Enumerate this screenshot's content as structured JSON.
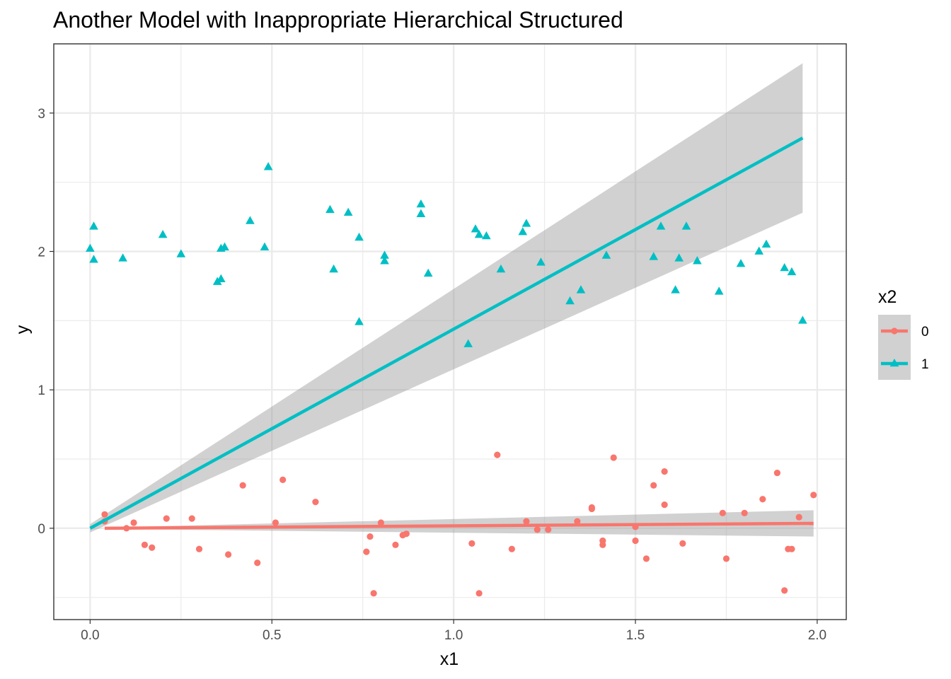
{
  "chart_data": {
    "type": "scatter",
    "title": "Another Model with Inappropriate Hierarchical Structured",
    "xlabel": "x1",
    "ylabel": "y",
    "xlim": [
      -0.1,
      2.08
    ],
    "ylim": [
      -0.66,
      3.5
    ],
    "x_ticks": [
      0.0,
      0.5,
      1.0,
      1.5,
      2.0
    ],
    "x_tick_labels": [
      "0.0",
      "0.5",
      "1.0",
      "1.5",
      "2.0"
    ],
    "y_ticks": [
      0,
      1,
      2,
      3
    ],
    "y_tick_labels": [
      "0",
      "1",
      "2",
      "3"
    ],
    "grid": true,
    "legend": {
      "title": "x2",
      "position": "right"
    },
    "colors": {
      "0": "#F8766D",
      "1": "#00BFC4",
      "ribbon": "#999999",
      "panel_border": "#333333",
      "grid": "#ebebeb"
    },
    "series": [
      {
        "name": "0",
        "marker": "circle",
        "x": [
          0.04,
          0.04,
          0.1,
          0.12,
          0.15,
          0.17,
          0.21,
          0.28,
          0.3,
          0.38,
          0.42,
          0.46,
          0.51,
          0.53,
          0.62,
          0.76,
          0.77,
          0.78,
          0.8,
          0.84,
          0.86,
          0.87,
          1.05,
          1.07,
          1.12,
          1.16,
          1.2,
          1.23,
          1.26,
          1.34,
          1.38,
          1.38,
          1.41,
          1.41,
          1.44,
          1.5,
          1.5,
          1.53,
          1.55,
          1.58,
          1.58,
          1.63,
          1.74,
          1.75,
          1.8,
          1.85,
          1.89,
          1.91,
          1.92,
          1.93,
          1.95,
          1.99
        ],
        "y": [
          0.1,
          0.05,
          0.0,
          0.04,
          -0.12,
          -0.14,
          0.07,
          0.07,
          -0.15,
          -0.19,
          0.31,
          -0.25,
          0.04,
          0.35,
          0.19,
          -0.17,
          -0.06,
          -0.47,
          0.04,
          -0.12,
          -0.05,
          -0.04,
          -0.11,
          -0.47,
          0.53,
          -0.15,
          0.05,
          -0.01,
          -0.01,
          0.05,
          0.15,
          0.14,
          -0.09,
          -0.12,
          0.51,
          0.01,
          -0.09,
          -0.22,
          0.31,
          0.41,
          0.17,
          -0.11,
          0.11,
          -0.22,
          0.11,
          0.21,
          0.4,
          -0.45,
          -0.15,
          -0.15,
          0.08,
          0.24
        ],
        "fit": {
          "x": [
            0.04,
            1.99
          ],
          "y": [
            0.0,
            0.035
          ]
        },
        "band": {
          "x": [
            0.04,
            1.99
          ],
          "lower": [
            -0.005,
            -0.06
          ],
          "upper": [
            0.005,
            0.13
          ]
        }
      },
      {
        "name": "1",
        "marker": "triangle",
        "x": [
          0.0,
          0.01,
          0.01,
          0.09,
          0.2,
          0.25,
          0.35,
          0.36,
          0.36,
          0.37,
          0.44,
          0.48,
          0.49,
          0.66,
          0.67,
          0.71,
          0.74,
          0.74,
          0.81,
          0.81,
          0.91,
          0.91,
          0.93,
          1.04,
          1.06,
          1.07,
          1.09,
          1.13,
          1.19,
          1.2,
          1.24,
          1.32,
          1.35,
          1.42,
          1.55,
          1.57,
          1.61,
          1.62,
          1.64,
          1.67,
          1.73,
          1.79,
          1.84,
          1.86,
          1.91,
          1.93,
          1.96
        ],
        "y": [
          2.02,
          2.18,
          1.94,
          1.95,
          2.12,
          1.98,
          1.78,
          1.8,
          2.02,
          2.03,
          2.22,
          2.03,
          2.61,
          2.3,
          1.87,
          2.28,
          2.1,
          1.49,
          1.97,
          1.93,
          2.34,
          2.27,
          1.84,
          1.33,
          2.16,
          2.12,
          2.11,
          1.87,
          2.14,
          2.2,
          1.92,
          1.64,
          1.72,
          1.97,
          1.96,
          2.18,
          1.72,
          1.95,
          2.18,
          1.93,
          1.71,
          1.91,
          2.0,
          2.05,
          1.88,
          1.85,
          1.5
        ],
        "fit": {
          "x": [
            0.0,
            1.96
          ],
          "y": [
            0.0,
            2.82
          ]
        },
        "band": {
          "x": [
            0.0,
            1.96
          ],
          "lower": [
            -0.03,
            2.28
          ],
          "upper": [
            0.03,
            3.36
          ]
        }
      }
    ]
  }
}
